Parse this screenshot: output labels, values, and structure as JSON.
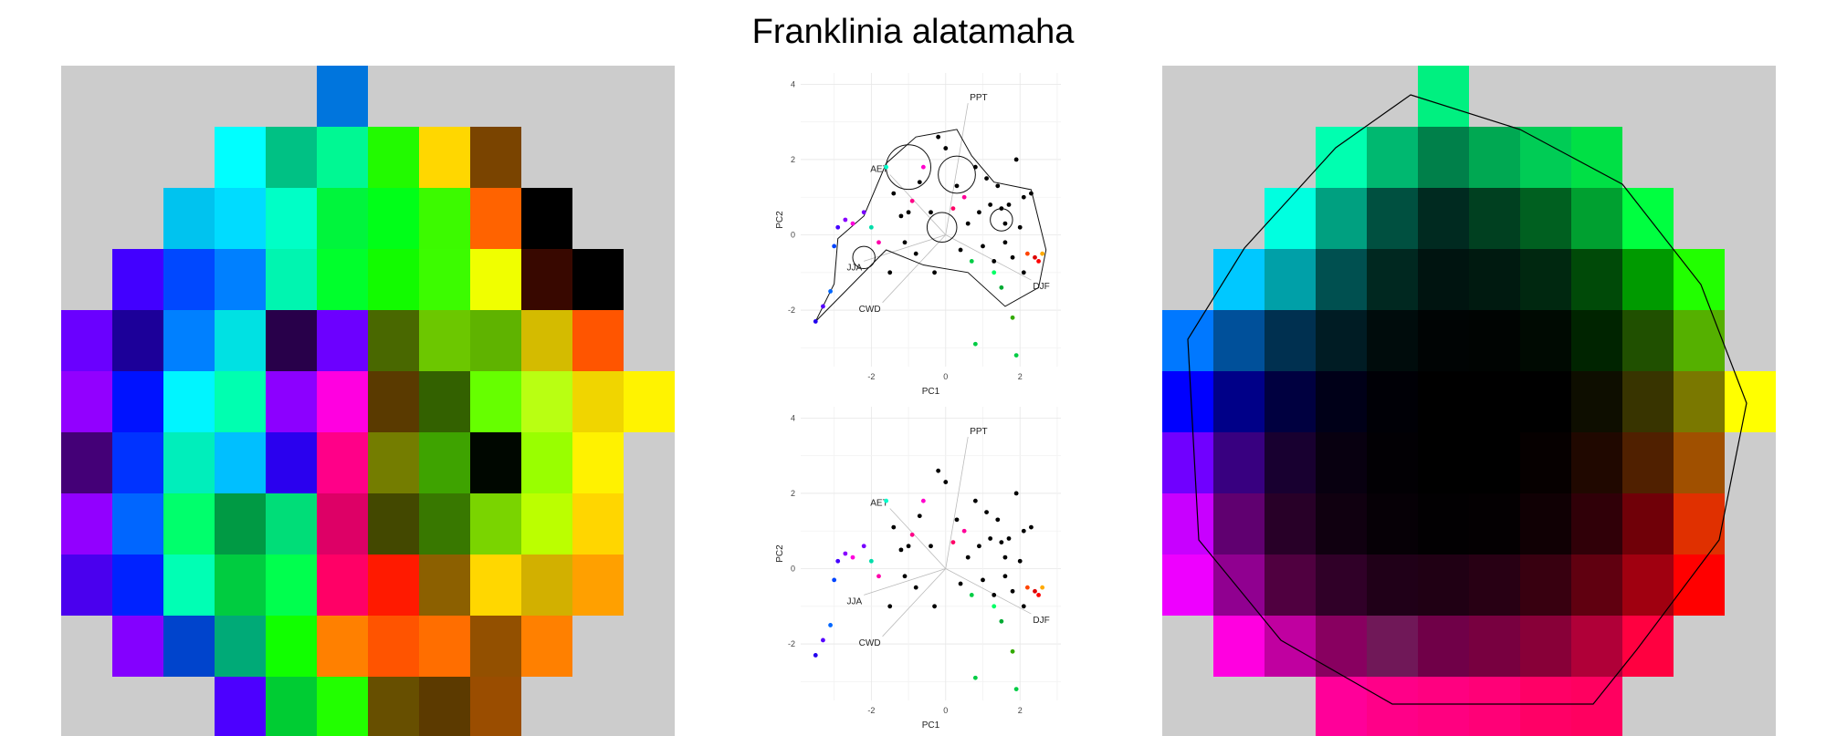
{
  "title": "Franklinia alatamaha",
  "chart_data": [
    {
      "type": "heatmap",
      "grid_size": [
        12,
        11
      ],
      "background": "#cccccc",
      "cells": [
        [
          "#cccccc",
          "#cccccc",
          "#cccccc",
          "#cccccc",
          "#cccccc",
          "#0075dd",
          "#cccccc",
          "#cccccc",
          "#cccccc",
          "#cccccc",
          "#cccccc",
          "#cccccc"
        ],
        [
          "#cccccc",
          "#cccccc",
          "#cccccc",
          "#00ffff",
          "#00c184",
          "#00f893",
          "#22fa00",
          "#ffd700",
          "#7a4400",
          "#cccccc",
          "#cccccc",
          "#cccccc"
        ],
        [
          "#cccccc",
          "#cccccc",
          "#00c3ef",
          "#00dcff",
          "#00ffc6",
          "#00f53c",
          "#00ff18",
          "#3cfa00",
          "#ff6300",
          "#000000",
          "#cccccc",
          "#cccccc"
        ],
        [
          "#cccccc",
          "#4200ff",
          "#0048ff",
          "#0080ff",
          "#00f5b0",
          "#00ff2c",
          "#12fb00",
          "#3cfc00",
          "#f0ff00",
          "#380800",
          "#000000",
          "#cccccc"
        ],
        [
          "#6a00ff",
          "#1c0099",
          "#0080ff",
          "#00e1e3",
          "#28004a",
          "#6c00ff",
          "#496800",
          "#6cc700",
          "#5fb300",
          "#d4bb00",
          "#ff5500",
          "#cccccc"
        ],
        [
          "#9200ff",
          "#0012ff",
          "#00f5ff",
          "#00ffb0",
          "#8c00ff",
          "#ff00e0",
          "#5a3a00",
          "#336100",
          "#66ff00",
          "#b9ff12",
          "#f0d500",
          "#fff300"
        ],
        [
          "#440077",
          "#0033ff",
          "#00eebb",
          "#00bfff",
          "#2a00ee",
          "#ff0088",
          "#747d00",
          "#3ea300",
          "#000700",
          "#99ff00",
          "#fff200",
          "#cccccc"
        ],
        [
          "#9200ff",
          "#0066ff",
          "#00ff6c",
          "#009a44",
          "#00dd78",
          "#dd0066",
          "#434800",
          "#387800",
          "#7ad400",
          "#bbff00",
          "#ffd600",
          "#cccccc"
        ],
        [
          "#4a00ee",
          "#0022ff",
          "#00ffb4",
          "#00cc40",
          "#00ff4e",
          "#ff0066",
          "#ff1a00",
          "#8c6000",
          "#ffd700",
          "#d2b000",
          "#ffa000",
          "#cccccc"
        ],
        [
          "#cccccc",
          "#8400ff",
          "#0044cc",
          "#00aa77",
          "#11ff00",
          "#ff8000",
          "#ff5400",
          "#ff6e00",
          "#935000",
          "#ff8000",
          "#cccccc",
          "#cccccc"
        ],
        [
          "#cccccc",
          "#cccccc",
          "#cccccc",
          "#4c00ff",
          "#00cc33",
          "#22ff00",
          "#674f00",
          "#5c3a00",
          "#9a4d00",
          "#cccccc",
          "#cccccc",
          "#cccccc"
        ]
      ]
    },
    {
      "type": "scatter",
      "xlabel": "PC1",
      "ylabel": "PC2",
      "xlim": [
        -3.9,
        3.1
      ],
      "ylim": [
        -3.5,
        4.3
      ],
      "x_ticks": [
        -2,
        0,
        2
      ],
      "y_ticks": [
        -2,
        0,
        2,
        4
      ],
      "grid": true,
      "vectors": [
        {
          "label": "PPT",
          "x": 0.6,
          "y": 3.5
        },
        {
          "label": "AET",
          "x": -1.5,
          "y": 1.6
        },
        {
          "label": "JJA",
          "x": -2.2,
          "y": -0.7
        },
        {
          "label": "CWD",
          "x": -1.7,
          "y": -1.8
        },
        {
          "label": "DJF",
          "x": 2.3,
          "y": -1.2
        }
      ],
      "points": [
        {
          "x": -3.5,
          "y": -2.3,
          "c": "#2200ee"
        },
        {
          "x": -3.3,
          "y": -1.9,
          "c": "#5500ff"
        },
        {
          "x": -3.1,
          "y": -1.5,
          "c": "#0066ff"
        },
        {
          "x": -3.0,
          "y": -0.3,
          "c": "#0044ff"
        },
        {
          "x": -2.9,
          "y": 0.2,
          "c": "#4400ff"
        },
        {
          "x": -2.7,
          "y": 0.4,
          "c": "#8800ff"
        },
        {
          "x": -2.5,
          "y": 0.3,
          "c": "#ff00dd"
        },
        {
          "x": -2.2,
          "y": 0.6,
          "c": "#7700ff"
        },
        {
          "x": -2.0,
          "y": 0.2,
          "c": "#00ddaa"
        },
        {
          "x": -1.8,
          "y": -0.2,
          "c": "#ff00aa"
        },
        {
          "x": -1.6,
          "y": 1.8,
          "c": "#00ffcc"
        },
        {
          "x": -1.4,
          "y": 1.1,
          "c": "#000000"
        },
        {
          "x": -1.2,
          "y": 0.5,
          "c": "#000000"
        },
        {
          "x": -1.0,
          "y": 0.6,
          "c": "#000000"
        },
        {
          "x": -0.9,
          "y": 0.9,
          "c": "#ff0088"
        },
        {
          "x": -0.7,
          "y": 1.4,
          "c": "#000000"
        },
        {
          "x": -0.6,
          "y": 1.8,
          "c": "#ff00cc"
        },
        {
          "x": -0.4,
          "y": 0.6,
          "c": "#000000"
        },
        {
          "x": -0.2,
          "y": 2.6,
          "c": "#000000"
        },
        {
          "x": 0.0,
          "y": 2.3,
          "c": "#000000"
        },
        {
          "x": 0.2,
          "y": 0.7,
          "c": "#ff0066"
        },
        {
          "x": 0.3,
          "y": 1.3,
          "c": "#000000"
        },
        {
          "x": 0.5,
          "y": 1.0,
          "c": "#ff0099"
        },
        {
          "x": 0.6,
          "y": 0.3,
          "c": "#000000"
        },
        {
          "x": 0.8,
          "y": 1.8,
          "c": "#000000"
        },
        {
          "x": 0.9,
          "y": 0.6,
          "c": "#000000"
        },
        {
          "x": 1.1,
          "y": 1.5,
          "c": "#000000"
        },
        {
          "x": 1.2,
          "y": 0.8,
          "c": "#000000"
        },
        {
          "x": 1.4,
          "y": 1.3,
          "c": "#000000"
        },
        {
          "x": 1.5,
          "y": 0.7,
          "c": "#000000"
        },
        {
          "x": 1.7,
          "y": 0.8,
          "c": "#000000"
        },
        {
          "x": 1.9,
          "y": 2.0,
          "c": "#000000"
        },
        {
          "x": 2.1,
          "y": 1.0,
          "c": "#000000"
        },
        {
          "x": 2.3,
          "y": 1.1,
          "c": "#000000"
        },
        {
          "x": 0.4,
          "y": -0.4,
          "c": "#000000"
        },
        {
          "x": 0.7,
          "y": -0.7,
          "c": "#00cc44"
        },
        {
          "x": 1.0,
          "y": -0.3,
          "c": "#000000"
        },
        {
          "x": 1.3,
          "y": -0.7,
          "c": "#000000"
        },
        {
          "x": 1.6,
          "y": -0.2,
          "c": "#000000"
        },
        {
          "x": 1.5,
          "y": -1.4,
          "c": "#00aa33"
        },
        {
          "x": 1.3,
          "y": -1.0,
          "c": "#00ff66"
        },
        {
          "x": 1.8,
          "y": -0.6,
          "c": "#000000"
        },
        {
          "x": 2.2,
          "y": -0.5,
          "c": "#ff4400"
        },
        {
          "x": 2.4,
          "y": -0.6,
          "c": "#dd0000"
        },
        {
          "x": 2.6,
          "y": -0.5,
          "c": "#ffaa00"
        },
        {
          "x": 2.1,
          "y": -1.0,
          "c": "#000000"
        },
        {
          "x": 1.8,
          "y": -2.2,
          "c": "#33aa00"
        },
        {
          "x": 0.8,
          "y": -2.9,
          "c": "#00cc44"
        },
        {
          "x": 1.9,
          "y": -3.2,
          "c": "#00cc44"
        },
        {
          "x": -0.8,
          "y": -0.5,
          "c": "#000000"
        },
        {
          "x": -1.5,
          "y": -1.0,
          "c": "#000000"
        },
        {
          "x": -1.1,
          "y": -0.2,
          "c": "#000000"
        },
        {
          "x": -0.3,
          "y": -1.0,
          "c": "#000000"
        },
        {
          "x": 2.0,
          "y": 0.2,
          "c": "#000000"
        },
        {
          "x": 2.5,
          "y": -0.7,
          "c": "#ff0000"
        },
        {
          "x": 1.6,
          "y": 0.3,
          "c": "#000000"
        }
      ]
    },
    {
      "type": "scatter",
      "xlabel": "PC1",
      "ylabel": "PC2",
      "xlim": [
        -3.9,
        3.1
      ],
      "ylim": [
        -3.5,
        4.3
      ],
      "x_ticks": [
        -2,
        0,
        2
      ],
      "y_ticks": [
        -2,
        0,
        2,
        4
      ],
      "grid": true,
      "vectors": [
        {
          "label": "PPT",
          "x": 0.6,
          "y": 3.5
        },
        {
          "label": "AET",
          "x": -1.5,
          "y": 1.6
        },
        {
          "label": "JJA",
          "x": -2.2,
          "y": -0.7
        },
        {
          "label": "CWD",
          "x": -1.7,
          "y": -1.8
        },
        {
          "label": "DJF",
          "x": 2.3,
          "y": -1.2
        }
      ],
      "points": [
        {
          "x": -3.5,
          "y": -2.3,
          "c": "#2200ee"
        },
        {
          "x": -3.3,
          "y": -1.9,
          "c": "#5500ff"
        },
        {
          "x": -3.1,
          "y": -1.5,
          "c": "#0066ff"
        },
        {
          "x": -3.0,
          "y": -0.3,
          "c": "#0044ff"
        },
        {
          "x": -2.9,
          "y": 0.2,
          "c": "#4400ff"
        },
        {
          "x": -2.7,
          "y": 0.4,
          "c": "#8800ff"
        },
        {
          "x": -2.5,
          "y": 0.3,
          "c": "#ff00dd"
        },
        {
          "x": -2.2,
          "y": 0.6,
          "c": "#7700ff"
        },
        {
          "x": -2.0,
          "y": 0.2,
          "c": "#00ddaa"
        },
        {
          "x": -1.8,
          "y": -0.2,
          "c": "#ff00aa"
        },
        {
          "x": -1.6,
          "y": 1.8,
          "c": "#00ffcc"
        },
        {
          "x": -1.4,
          "y": 1.1,
          "c": "#000000"
        },
        {
          "x": -1.2,
          "y": 0.5,
          "c": "#000000"
        },
        {
          "x": -1.0,
          "y": 0.6,
          "c": "#000000"
        },
        {
          "x": -0.9,
          "y": 0.9,
          "c": "#ff0088"
        },
        {
          "x": -0.7,
          "y": 1.4,
          "c": "#000000"
        },
        {
          "x": -0.6,
          "y": 1.8,
          "c": "#ff00cc"
        },
        {
          "x": -0.4,
          "y": 0.6,
          "c": "#000000"
        },
        {
          "x": -0.2,
          "y": 2.6,
          "c": "#000000"
        },
        {
          "x": 0.0,
          "y": 2.3,
          "c": "#000000"
        },
        {
          "x": 0.2,
          "y": 0.7,
          "c": "#ff0066"
        },
        {
          "x": 0.3,
          "y": 1.3,
          "c": "#000000"
        },
        {
          "x": 0.5,
          "y": 1.0,
          "c": "#ff0099"
        },
        {
          "x": 0.6,
          "y": 0.3,
          "c": "#000000"
        },
        {
          "x": 0.8,
          "y": 1.8,
          "c": "#000000"
        },
        {
          "x": 0.9,
          "y": 0.6,
          "c": "#000000"
        },
        {
          "x": 1.1,
          "y": 1.5,
          "c": "#000000"
        },
        {
          "x": 1.2,
          "y": 0.8,
          "c": "#000000"
        },
        {
          "x": 1.4,
          "y": 1.3,
          "c": "#000000"
        },
        {
          "x": 1.5,
          "y": 0.7,
          "c": "#000000"
        },
        {
          "x": 1.7,
          "y": 0.8,
          "c": "#000000"
        },
        {
          "x": 1.9,
          "y": 2.0,
          "c": "#000000"
        },
        {
          "x": 2.1,
          "y": 1.0,
          "c": "#000000"
        },
        {
          "x": 2.3,
          "y": 1.1,
          "c": "#000000"
        },
        {
          "x": 0.4,
          "y": -0.4,
          "c": "#000000"
        },
        {
          "x": 0.7,
          "y": -0.7,
          "c": "#00cc44"
        },
        {
          "x": 1.0,
          "y": -0.3,
          "c": "#000000"
        },
        {
          "x": 1.3,
          "y": -0.7,
          "c": "#000000"
        },
        {
          "x": 1.6,
          "y": -0.2,
          "c": "#000000"
        },
        {
          "x": 1.5,
          "y": -1.4,
          "c": "#00aa33"
        },
        {
          "x": 1.3,
          "y": -1.0,
          "c": "#00ff66"
        },
        {
          "x": 1.8,
          "y": -0.6,
          "c": "#000000"
        },
        {
          "x": 2.2,
          "y": -0.5,
          "c": "#ff4400"
        },
        {
          "x": 2.4,
          "y": -0.6,
          "c": "#dd0000"
        },
        {
          "x": 2.6,
          "y": -0.5,
          "c": "#ffaa00"
        },
        {
          "x": 2.1,
          "y": -1.0,
          "c": "#000000"
        },
        {
          "x": 1.8,
          "y": -2.2,
          "c": "#33aa00"
        },
        {
          "x": 0.8,
          "y": -2.9,
          "c": "#00cc44"
        },
        {
          "x": 1.9,
          "y": -3.2,
          "c": "#00cc44"
        },
        {
          "x": -0.8,
          "y": -0.5,
          "c": "#000000"
        },
        {
          "x": -1.5,
          "y": -1.0,
          "c": "#000000"
        },
        {
          "x": -1.1,
          "y": -0.2,
          "c": "#000000"
        },
        {
          "x": -0.3,
          "y": -1.0,
          "c": "#000000"
        },
        {
          "x": 2.0,
          "y": 0.2,
          "c": "#000000"
        },
        {
          "x": 2.5,
          "y": -0.7,
          "c": "#ff0000"
        },
        {
          "x": 1.6,
          "y": 0.3,
          "c": "#000000"
        }
      ]
    },
    {
      "type": "heatmap",
      "grid_size": [
        12,
        11
      ],
      "background": "#cccccc",
      "cells": [
        [
          "#cccccc",
          "#cccccc",
          "#cccccc",
          "#cccccc",
          "#cccccc",
          "#00f080",
          "#cccccc",
          "#cccccc",
          "#cccccc",
          "#cccccc",
          "#cccccc",
          "#cccccc"
        ],
        [
          "#cccccc",
          "#cccccc",
          "#cccccc",
          "#00ffb0",
          "#00b870",
          "#00804a",
          "#00a852",
          "#00cc55",
          "#00e045",
          "#cccccc",
          "#cccccc",
          "#cccccc"
        ],
        [
          "#cccccc",
          "#cccccc",
          "#00ffe0",
          "#00a080",
          "#005040",
          "#002a20",
          "#004020",
          "#006020",
          "#00a030",
          "#00ff40",
          "#cccccc",
          "#cccccc"
        ],
        [
          "#cccccc",
          "#00c8ff",
          "#00a0a8",
          "#005050",
          "#002820",
          "#001410",
          "#001a10",
          "#002810",
          "#004a08",
          "#009a00",
          "#22ff00",
          "#cccccc"
        ],
        [
          "#0078ff",
          "#00509a",
          "#003050",
          "#001c24",
          "#000c0c",
          "#000404",
          "#000402",
          "#000a02",
          "#002400",
          "#205000",
          "#55b000",
          "#cccccc"
        ],
        [
          "#0000ff",
          "#000088",
          "#000040",
          "#000018",
          "#000006",
          "#000000",
          "#000000",
          "#000000",
          "#0e0e00",
          "#383400",
          "#7a7800",
          "#ffff00"
        ],
        [
          "#7000ff",
          "#380080",
          "#180030",
          "#080010",
          "#020004",
          "#000000",
          "#000000",
          "#060000",
          "#200800",
          "#502000",
          "#a05000",
          "#cccccc"
        ],
        [
          "#c800ff",
          "#600070",
          "#280028",
          "#100010",
          "#060006",
          "#020002",
          "#040002",
          "#100004",
          "#300008",
          "#700008",
          "#e03000",
          "#cccccc"
        ],
        [
          "#ee00ff",
          "#900090",
          "#500040",
          "#300028",
          "#200018",
          "#200014",
          "#280014",
          "#380010",
          "#600010",
          "#a00010",
          "#ff0000",
          "#cccccc"
        ],
        [
          "#cccccc",
          "#ff00e0",
          "#c000a0",
          "#880060",
          "#701858",
          "#700048",
          "#780040",
          "#880038",
          "#b00038",
          "#ff0040",
          "#cccccc",
          "#cccccc"
        ],
        [
          "#cccccc",
          "#cccccc",
          "#cccccc",
          "#ff0099",
          "#ff0088",
          "#ff0080",
          "#ff0077",
          "#ff0066",
          "#ff0060",
          "#cccccc",
          "#cccccc",
          "#cccccc"
        ]
      ]
    }
  ]
}
